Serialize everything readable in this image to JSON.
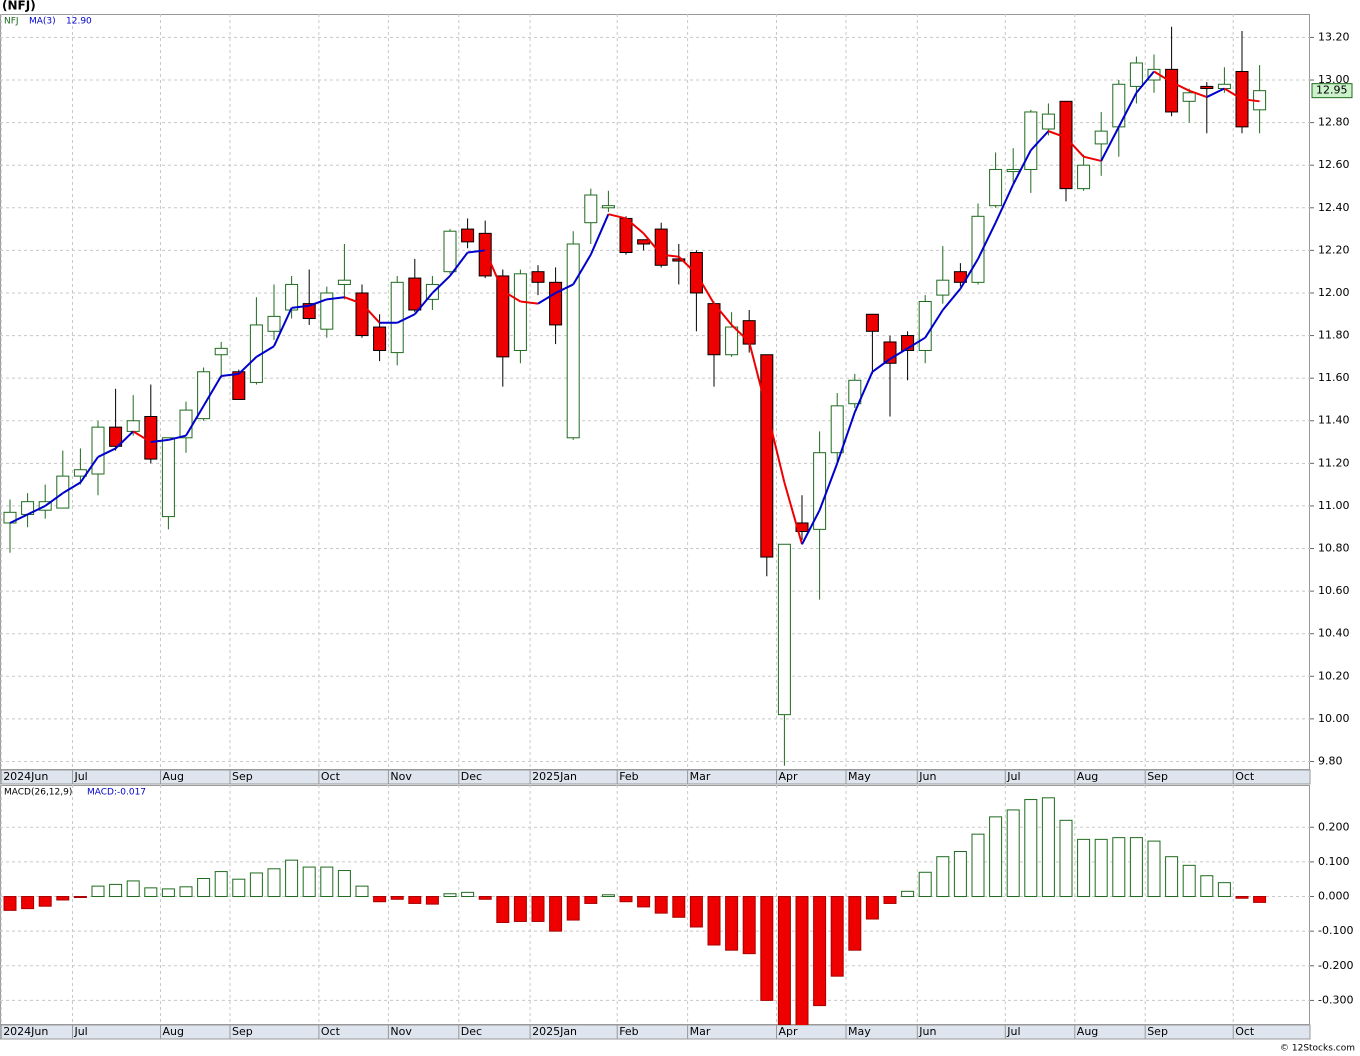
{
  "title": "(NFJ)",
  "footer": "© 12Stocks.com",
  "chart_data": [
    {
      "type": "candlestick",
      "symbol": "NFJ",
      "open": [
        10.92,
        10.96,
        10.98,
        10.99,
        11.14,
        11.15,
        11.37,
        11.35,
        11.42,
        10.95,
        11.32,
        11.41,
        11.71,
        11.63,
        11.58,
        11.82,
        11.92,
        11.95,
        11.83,
        12.04,
        12.0,
        11.84,
        11.72,
        12.07,
        11.97,
        12.1,
        12.3,
        12.28,
        12.08,
        11.73,
        12.1,
        12.05,
        11.32,
        12.33,
        12.4,
        12.35,
        12.25,
        12.3,
        12.16,
        12.19,
        11.95,
        11.71,
        11.87,
        11.71,
        10.02,
        10.92,
        10.89,
        11.25,
        11.48,
        11.9,
        11.77,
        11.8,
        11.73,
        11.99,
        12.1,
        12.05,
        12.41,
        12.57,
        12.58,
        12.77,
        12.9,
        12.49,
        12.7,
        12.78,
        12.97,
        13.0,
        13.05,
        12.9,
        12.97,
        12.96,
        13.04,
        12.86
      ],
      "high": [
        11.03,
        11.06,
        11.1,
        11.26,
        11.27,
        11.4,
        11.55,
        11.52,
        11.57,
        11.32,
        11.49,
        11.65,
        11.77,
        11.64,
        11.98,
        12.04,
        12.08,
        12.11,
        12.03,
        12.23,
        12.04,
        11.9,
        12.08,
        12.16,
        12.08,
        12.3,
        12.35,
        12.34,
        12.11,
        12.11,
        12.13,
        12.12,
        12.29,
        12.49,
        12.48,
        12.36,
        12.25,
        12.33,
        12.23,
        12.2,
        11.96,
        11.91,
        11.92,
        11.71,
        10.82,
        11.05,
        11.35,
        11.53,
        11.62,
        11.9,
        11.8,
        11.82,
        11.99,
        12.22,
        12.14,
        12.42,
        12.66,
        12.68,
        12.86,
        12.89,
        12.9,
        12.65,
        12.85,
        13.0,
        13.11,
        13.12,
        13.25,
        12.96,
        12.99,
        13.06,
        13.23,
        13.07
      ],
      "low": [
        10.78,
        10.9,
        10.94,
        10.99,
        11.1,
        11.05,
        11.26,
        11.33,
        11.2,
        10.89,
        11.25,
        11.4,
        11.6,
        11.5,
        11.57,
        11.78,
        11.88,
        11.85,
        11.79,
        11.97,
        11.79,
        11.68,
        11.66,
        11.91,
        11.92,
        12.09,
        12.21,
        12.07,
        11.56,
        11.67,
        11.99,
        11.76,
        11.31,
        12.23,
        12.38,
        12.18,
        12.2,
        12.12,
        12.04,
        11.82,
        11.56,
        11.7,
        11.72,
        10.67,
        9.78,
        10.84,
        10.56,
        11.2,
        11.46,
        11.62,
        11.42,
        11.59,
        11.67,
        11.95,
        12.03,
        12.04,
        12.4,
        12.52,
        12.47,
        12.74,
        12.43,
        12.48,
        12.55,
        12.64,
        12.89,
        12.94,
        12.83,
        12.8,
        12.75,
        12.94,
        12.75,
        12.75
      ],
      "close": [
        10.97,
        11.02,
        11.02,
        11.14,
        11.17,
        11.37,
        11.28,
        11.4,
        11.22,
        11.32,
        11.45,
        11.63,
        11.74,
        11.5,
        11.85,
        11.89,
        12.04,
        11.88,
        12.0,
        12.06,
        11.8,
        11.73,
        12.05,
        11.92,
        12.04,
        12.29,
        12.24,
        12.08,
        11.7,
        12.09,
        12.05,
        11.85,
        12.23,
        12.46,
        12.41,
        12.19,
        12.23,
        12.13,
        12.15,
        12.0,
        11.71,
        11.84,
        11.76,
        10.76,
        10.82,
        10.88,
        11.25,
        11.47,
        11.59,
        11.82,
        11.67,
        11.73,
        11.96,
        12.06,
        12.05,
        12.36,
        12.58,
        12.58,
        12.85,
        12.84,
        12.49,
        12.6,
        12.76,
        12.98,
        13.08,
        13.05,
        12.85,
        12.94,
        12.96,
        12.98,
        12.78,
        12.95
      ],
      "up_color": "#1e6b1e",
      "down_color": "#ee0000",
      "ma": {
        "name": "MA(3)",
        "value_label": "12.90",
        "up_color": "#0000cc",
        "down_color": "#ee0000",
        "values": [
          10.92,
          10.96,
          11.0,
          11.06,
          11.11,
          11.23,
          11.27,
          11.35,
          11.3,
          11.31,
          11.33,
          11.47,
          11.61,
          11.62,
          11.7,
          11.75,
          11.93,
          11.94,
          11.97,
          11.98,
          11.95,
          11.86,
          11.86,
          11.9,
          12.0,
          12.08,
          12.19,
          12.2,
          12.01,
          11.96,
          11.95,
          12.0,
          12.04,
          12.18,
          12.37,
          12.35,
          12.28,
          12.18,
          12.17,
          12.09,
          11.95,
          11.85,
          11.77,
          11.45,
          11.11,
          10.82,
          10.98,
          11.2,
          11.44,
          11.63,
          11.69,
          11.74,
          11.79,
          11.92,
          12.02,
          12.16,
          12.33,
          12.51,
          12.67,
          12.76,
          12.73,
          12.64,
          12.62,
          12.78,
          12.94,
          13.04,
          12.99,
          12.95,
          12.92,
          12.96,
          12.91,
          12.9
        ]
      },
      "last_label": "12.95",
      "ylim": [
        9.76,
        13.31
      ],
      "yticks": [
        {
          "value": 9.8,
          "label": "9.80"
        },
        {
          "value": 10.0,
          "label": "10.00"
        },
        {
          "value": 10.2,
          "label": "10.20"
        },
        {
          "value": 10.4,
          "label": "10.40"
        },
        {
          "value": 10.6,
          "label": "10.60"
        },
        {
          "value": 10.8,
          "label": "10.80"
        },
        {
          "value": 11.0,
          "label": "11.00"
        },
        {
          "value": 11.2,
          "label": "11.20"
        },
        {
          "value": 11.4,
          "label": "11.40"
        },
        {
          "value": 11.6,
          "label": "11.60"
        },
        {
          "value": 11.8,
          "label": "11.80"
        },
        {
          "value": 12.0,
          "label": "12.00"
        },
        {
          "value": 12.2,
          "label": "12.20"
        },
        {
          "value": 12.4,
          "label": "12.40"
        },
        {
          "value": 12.6,
          "label": "12.60"
        },
        {
          "value": 12.8,
          "label": "12.80"
        },
        {
          "value": 13.0,
          "label": "13.00"
        },
        {
          "value": 13.2,
          "label": "13.20"
        }
      ],
      "xticks": [
        {
          "value": -0.5,
          "label": "2024Jun"
        },
        {
          "value": 3.55,
          "label": "Jul"
        },
        {
          "value": 8.55,
          "label": "Aug"
        },
        {
          "value": 12.5,
          "label": "Sep"
        },
        {
          "value": 17.55,
          "label": "Oct"
        },
        {
          "value": 21.5,
          "label": "Nov"
        },
        {
          "value": 25.5,
          "label": "Dec"
        },
        {
          "value": 29.55,
          "label": "2025Jan"
        },
        {
          "value": 34.5,
          "label": "Feb"
        },
        {
          "value": 38.5,
          "label": "Mar"
        },
        {
          "value": 43.55,
          "label": "Apr"
        },
        {
          "value": 47.5,
          "label": "May"
        },
        {
          "value": 51.55,
          "label": "Jun"
        },
        {
          "value": 56.55,
          "label": "Jul"
        },
        {
          "value": 60.5,
          "label": "Aug"
        },
        {
          "value": 64.5,
          "label": "Sep"
        },
        {
          "value": 69.5,
          "label": "Oct"
        }
      ],
      "grid": true
    },
    {
      "type": "bar",
      "name": "MACD(26,12,9)",
      "value_label": "MACD:-0.017",
      "values": [
        -0.04,
        -0.035,
        -0.028,
        -0.01,
        -0.002,
        0.03,
        0.035,
        0.045,
        0.025,
        0.022,
        0.028,
        0.052,
        0.072,
        0.05,
        0.068,
        0.08,
        0.105,
        0.085,
        0.085,
        0.075,
        0.03,
        -0.015,
        -0.008,
        -0.02,
        -0.022,
        0.008,
        0.012,
        -0.008,
        -0.075,
        -0.072,
        -0.072,
        -0.1,
        -0.068,
        -0.02,
        0.005,
        -0.015,
        -0.03,
        -0.048,
        -0.06,
        -0.088,
        -0.14,
        -0.155,
        -0.165,
        -0.3,
        -0.37,
        -0.395,
        -0.315,
        -0.23,
        -0.155,
        -0.065,
        -0.02,
        0.015,
        0.07,
        0.115,
        0.13,
        0.18,
        0.23,
        0.25,
        0.28,
        0.285,
        0.22,
        0.165,
        0.165,
        0.17,
        0.17,
        0.16,
        0.115,
        0.09,
        0.06,
        0.04,
        -0.005,
        -0.017
      ],
      "pos_color": "#1e6b1e",
      "neg_color": "#ee0000",
      "ylim": [
        -0.371,
        0.322
      ],
      "yticks": [
        {
          "value": -0.3,
          "label": "-0.300"
        },
        {
          "value": -0.2,
          "label": "-0.200"
        },
        {
          "value": -0.1,
          "label": "-0.100"
        },
        {
          "value": 0,
          "label": "0.000"
        },
        {
          "value": 0.1,
          "label": "0.100"
        },
        {
          "value": 0.2,
          "label": "0.200"
        }
      ],
      "xticks": [
        {
          "value": -0.5,
          "label": "2024Jun"
        },
        {
          "value": 3.55,
          "label": "Jul"
        },
        {
          "value": 8.55,
          "label": "Aug"
        },
        {
          "value": 12.5,
          "label": "Sep"
        },
        {
          "value": 17.55,
          "label": "Oct"
        },
        {
          "value": 21.5,
          "label": "Nov"
        },
        {
          "value": 25.5,
          "label": "Dec"
        },
        {
          "value": 29.55,
          "label": "2025Jan"
        },
        {
          "value": 34.5,
          "label": "Feb"
        },
        {
          "value": 38.5,
          "label": "Mar"
        },
        {
          "value": 43.55,
          "label": "Apr"
        },
        {
          "value": 47.5,
          "label": "May"
        },
        {
          "value": 51.55,
          "label": "Jun"
        },
        {
          "value": 56.55,
          "label": "Jul"
        },
        {
          "value": 60.5,
          "label": "Aug"
        },
        {
          "value": 64.5,
          "label": "Sep"
        },
        {
          "value": 69.5,
          "label": "Oct"
        }
      ],
      "grid": true
    }
  ]
}
